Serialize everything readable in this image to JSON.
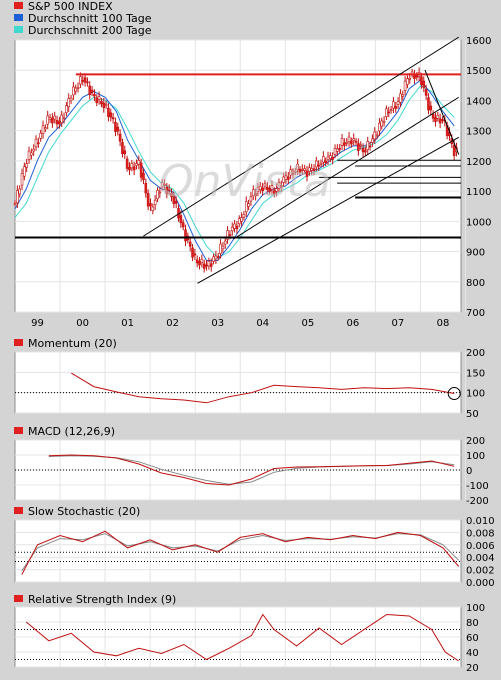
{
  "legend": [
    {
      "label": "S&P 500 INDEX",
      "color": "#e0201e"
    },
    {
      "label": "Durchschnitt 100 Tage",
      "color": "#1f5fd6"
    },
    {
      "label": "Durchschnitt 200 Tage",
      "color": "#3fd9d0"
    }
  ],
  "watermark": "OnVista",
  "chart_data": [
    {
      "type": "candlestick",
      "ylim": [
        700,
        1650
      ],
      "y_ticks": [
        "1600",
        "1500",
        "1400",
        "1300",
        "1200",
        "1100",
        "1000",
        "900",
        "800",
        "700"
      ],
      "x_ticks": [
        "99",
        "00",
        "01",
        "02",
        "03",
        "04",
        "05",
        "06",
        "07",
        "08"
      ],
      "x": [
        1998.75,
        1999.0,
        1999.25,
        1999.5,
        1999.75,
        2000.0,
        2000.25,
        2000.5,
        2000.75,
        2001.0,
        2001.25,
        2001.5,
        2001.75,
        2002.0,
        2002.25,
        2002.5,
        2002.75,
        2003.0,
        2003.25,
        2003.5,
        2003.75,
        2004.0,
        2004.25,
        2004.5,
        2004.75,
        2005.0,
        2005.25,
        2005.5,
        2005.75,
        2006.0,
        2006.25,
        2006.5,
        2006.75,
        2007.0,
        2007.25,
        2007.5,
        2007.75,
        2008.0,
        2008.25,
        2008.5
      ],
      "close": [
        1080,
        1230,
        1300,
        1380,
        1360,
        1460,
        1520,
        1450,
        1420,
        1340,
        1200,
        1220,
        1050,
        1150,
        1100,
        980,
        880,
        860,
        900,
        980,
        1020,
        1110,
        1140,
        1120,
        1170,
        1200,
        1190,
        1220,
        1240,
        1290,
        1300,
        1260,
        1320,
        1400,
        1430,
        1530,
        1520,
        1380,
        1370,
        1260
      ],
      "series": [
        {
          "name": "S&P 500 INDEX",
          "role": "price"
        },
        {
          "name": "Durchschnitt 100 Tage",
          "values": [
            1060,
            1130,
            1230,
            1310,
            1350,
            1400,
            1450,
            1470,
            1450,
            1400,
            1300,
            1230,
            1160,
            1130,
            1120,
            1040,
            950,
            880,
            880,
            930,
            990,
            1060,
            1110,
            1130,
            1140,
            1170,
            1190,
            1200,
            1230,
            1260,
            1280,
            1280,
            1300,
            1350,
            1400,
            1480,
            1510,
            1460,
            1400,
            1350
          ]
        },
        {
          "name": "Durchschnitt 200 Tage",
          "values": [
            1030,
            1080,
            1170,
            1260,
            1320,
            1370,
            1420,
            1450,
            1440,
            1410,
            1340,
            1260,
            1190,
            1150,
            1130,
            1080,
            1000,
            930,
            890,
            910,
            960,
            1020,
            1080,
            1110,
            1130,
            1150,
            1180,
            1195,
            1215,
            1240,
            1265,
            1275,
            1290,
            1320,
            1370,
            1440,
            1490,
            1470,
            1420,
            1380
          ]
        }
      ],
      "horizontal_lines": [
        1530,
        1230,
        1210,
        1170,
        1150,
        1100,
        960
      ],
      "channel_lines": [
        {
          "x": [
            2001.6,
            2008.6
          ],
          "y": [
            965,
            1660
          ]
        },
        {
          "x": [
            2002.8,
            2008.6
          ],
          "y": [
            800,
            1310
          ]
        },
        {
          "x": [
            2003.6,
            2008.6
          ],
          "y": [
            955,
            1450
          ]
        }
      ]
    },
    {
      "type": "line",
      "title": "Momentum (20)",
      "ylim": [
        50,
        200
      ],
      "y_ticks": [
        "200",
        "150",
        "100",
        "50"
      ],
      "reference_line": 100,
      "x": [
        2000.0,
        2000.5,
        2001.0,
        2001.5,
        2002.0,
        2002.5,
        2003.0,
        2003.5,
        2004.0,
        2004.5,
        2005.0,
        2005.5,
        2006.0,
        2006.5,
        2007.0,
        2007.5,
        2008.0,
        2008.5
      ],
      "values": [
        148,
        115,
        102,
        90,
        85,
        82,
        75,
        90,
        100,
        118,
        115,
        112,
        108,
        112,
        110,
        112,
        108,
        98
      ]
    },
    {
      "type": "line",
      "title": "MACD (12,26,9)",
      "ylim": [
        -200,
        200
      ],
      "y_ticks": [
        "200",
        "100",
        "0",
        "-100",
        "-200"
      ],
      "reference_line": 0,
      "x": [
        1999.5,
        2000.0,
        2000.5,
        2001.0,
        2001.5,
        2002.0,
        2002.5,
        2003.0,
        2003.5,
        2004.0,
        2004.5,
        2005.0,
        2005.5,
        2006.0,
        2006.5,
        2007.0,
        2007.5,
        2008.0,
        2008.5
      ],
      "values": [
        95,
        100,
        95,
        80,
        40,
        -20,
        -50,
        -90,
        -100,
        -60,
        10,
        20,
        22,
        25,
        28,
        30,
        45,
        60,
        25
      ],
      "signal": [
        90,
        95,
        92,
        82,
        55,
        5,
        -35,
        -70,
        -95,
        -80,
        -15,
        12,
        20,
        24,
        27,
        29,
        40,
        55,
        35
      ]
    },
    {
      "type": "line",
      "title": "Slow Stochastic (20)",
      "ylim": [
        0.0,
        0.01
      ],
      "y_ticks": [
        "0.010",
        "0.008",
        "0.006",
        "0.004",
        "0.002",
        "0.000"
      ],
      "reference_lines": [
        0.0048,
        0.0033
      ],
      "x": [
        1998.9,
        1999.25,
        1999.75,
        2000.25,
        2000.75,
        2001.25,
        2001.75,
        2002.25,
        2002.75,
        2003.25,
        2003.75,
        2004.25,
        2004.75,
        2005.25,
        2005.75,
        2006.25,
        2006.75,
        2007.25,
        2007.75,
        2008.25,
        2008.6
      ],
      "values": [
        0.0012,
        0.006,
        0.0075,
        0.0065,
        0.0082,
        0.0055,
        0.0068,
        0.0052,
        0.006,
        0.0048,
        0.0072,
        0.0078,
        0.0065,
        0.0072,
        0.0068,
        0.0075,
        0.007,
        0.008,
        0.0075,
        0.0055,
        0.0025
      ],
      "signal": [
        0.0018,
        0.0055,
        0.007,
        0.0068,
        0.0078,
        0.0058,
        0.0065,
        0.0055,
        0.0058,
        0.005,
        0.0068,
        0.0075,
        0.0067,
        0.007,
        0.0069,
        0.0073,
        0.0071,
        0.0078,
        0.0076,
        0.006,
        0.0035
      ]
    },
    {
      "type": "line",
      "title": "Relative Strength Index (9)",
      "ylim": [
        20,
        100
      ],
      "y_ticks": [
        "100",
        "80",
        "60",
        "40",
        "20"
      ],
      "reference_lines": [
        70,
        30
      ],
      "x": [
        1999.0,
        1999.5,
        2000.0,
        2000.5,
        2001.0,
        2001.5,
        2002.0,
        2002.5,
        2003.0,
        2003.5,
        2004.0,
        2004.25,
        2004.5,
        2005.0,
        2005.5,
        2006.0,
        2006.5,
        2007.0,
        2007.5,
        2008.0,
        2008.3,
        2008.6
      ],
      "values": [
        80,
        55,
        65,
        40,
        35,
        45,
        38,
        50,
        30,
        45,
        62,
        90,
        70,
        48,
        72,
        50,
        70,
        90,
        88,
        70,
        40,
        28
      ]
    }
  ]
}
